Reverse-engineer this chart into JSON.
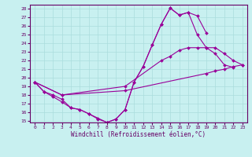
{
  "bg_color": "#c8f0f0",
  "line_color": "#990099",
  "xlabel": "Windchill (Refroidissement éolien,°C)",
  "xlim": [
    0,
    23
  ],
  "ylim": [
    15,
    28
  ],
  "xticks": [
    0,
    1,
    2,
    3,
    4,
    5,
    6,
    7,
    8,
    9,
    10,
    11,
    12,
    13,
    14,
    15,
    16,
    17,
    18,
    19,
    20,
    21,
    22,
    23
  ],
  "yticks": [
    15,
    16,
    17,
    18,
    19,
    20,
    21,
    22,
    23,
    24,
    25,
    26,
    27,
    28
  ],
  "series": [
    {
      "x": [
        0,
        1,
        2,
        3,
        4,
        5,
        6,
        7,
        8,
        9,
        10,
        11,
        12,
        13,
        14,
        15,
        16,
        17,
        18,
        19
      ],
      "y": [
        19.5,
        18.4,
        18.0,
        17.5,
        16.5,
        16.3,
        15.8,
        15.2,
        14.8,
        15.2,
        16.3,
        19.5,
        21.3,
        23.8,
        26.2,
        28.1,
        27.3,
        27.6,
        27.2,
        25.2
      ]
    },
    {
      "x": [
        0,
        1,
        2,
        3,
        4,
        5,
        6,
        7,
        8,
        9,
        10,
        11,
        12,
        13,
        14,
        15,
        16,
        17,
        18,
        19,
        20,
        21,
        22
      ],
      "y": [
        19.5,
        18.4,
        17.8,
        17.2,
        16.5,
        16.3,
        15.8,
        15.3,
        14.8,
        15.2,
        16.3,
        19.5,
        21.3,
        23.8,
        26.2,
        28.1,
        27.3,
        27.6,
        25.0,
        23.5,
        22.8,
        21.5,
        21.2
      ]
    },
    {
      "x": [
        0,
        3,
        10,
        19,
        20,
        21,
        22,
        23
      ],
      "y": [
        19.5,
        18.0,
        18.5,
        20.5,
        20.8,
        21.0,
        21.3,
        21.5
      ]
    },
    {
      "x": [
        0,
        3,
        10,
        14,
        15,
        16,
        17,
        18,
        19,
        20,
        21,
        22,
        23
      ],
      "y": [
        19.5,
        18.0,
        19.0,
        22.0,
        22.5,
        23.2,
        23.5,
        23.5,
        23.5,
        23.5,
        22.8,
        22.0,
        21.5
      ]
    }
  ]
}
